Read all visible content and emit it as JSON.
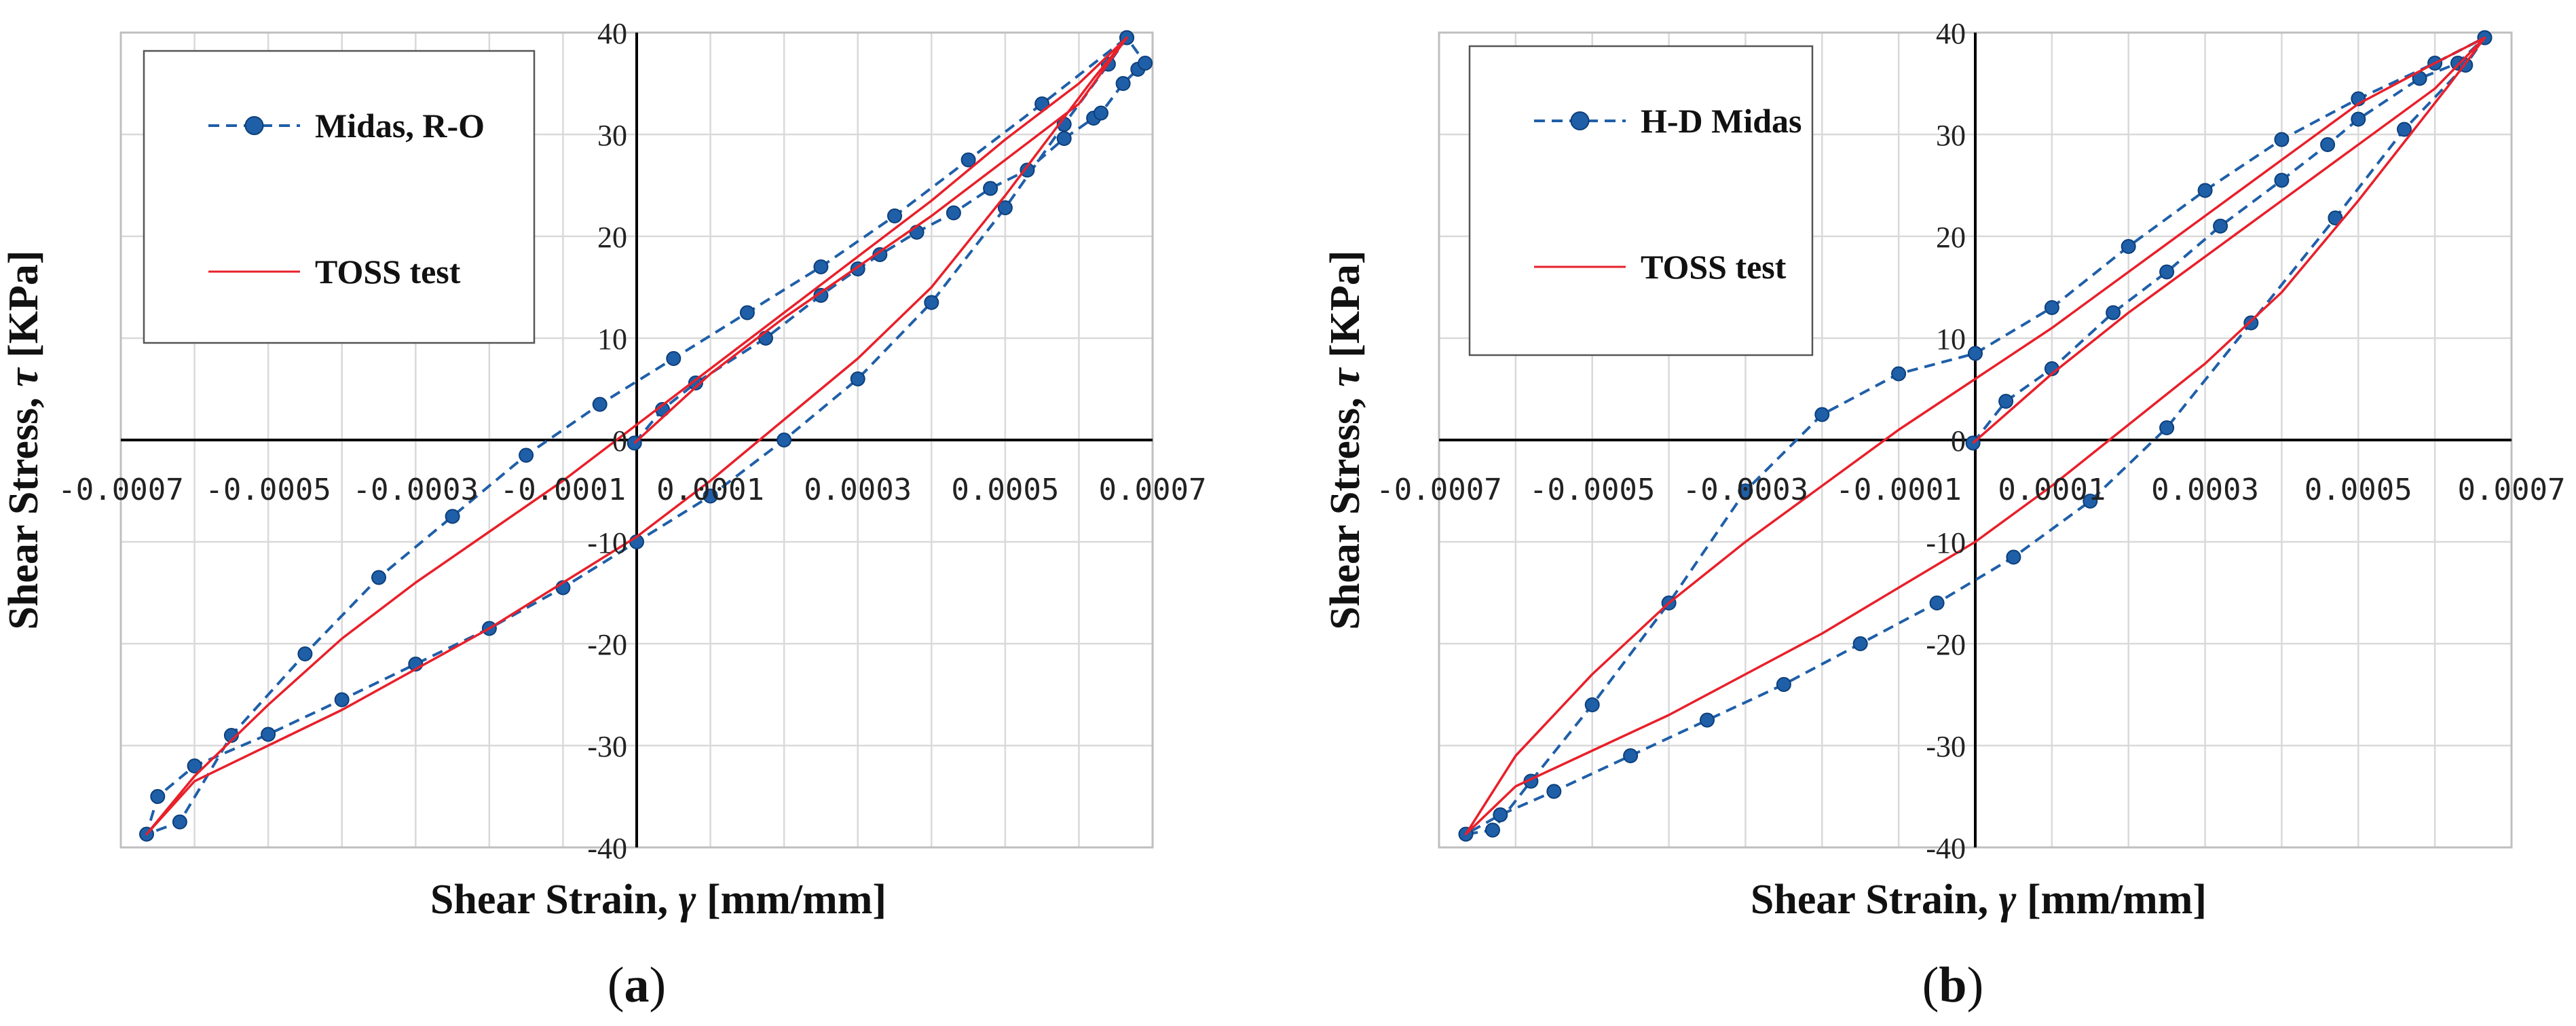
{
  "chart_data": [
    {
      "type": "line",
      "panel_label": "a",
      "title": "",
      "xlabel_prefix": "Shear Strain, ",
      "xlabel_symbol": "γ",
      "xlabel_suffix": "  [mm/mm]",
      "ylabel_prefix": "Shear Stress, ",
      "ylabel_symbol": "τ",
      "ylabel_suffix": " [KPa]",
      "xlim": [
        -0.0007,
        0.0007
      ],
      "ylim": [
        -40,
        40
      ],
      "grid": true,
      "legend_position": "top-left",
      "x_tick_labels": [
        "-0.0007",
        "-0.0005",
        "-0.0003",
        "-0.0001",
        "0.0001",
        "0.0003",
        "0.0005",
        "0.0007"
      ],
      "x_tick_values": [
        -0.0007,
        -0.0005,
        -0.0003,
        -0.0001,
        0.0001,
        0.0003,
        0.0005,
        0.0007
      ],
      "y_tick_labels": [
        "40",
        "30",
        "20",
        "10",
        "0",
        "-10",
        "-20",
        "-30",
        "-40"
      ],
      "y_tick_values": [
        40,
        30,
        20,
        10,
        0,
        -10,
        -20,
        -30,
        -40
      ],
      "series": [
        {
          "name": "Midas, R-O",
          "style": "dashed-markers",
          "color": "#1f5fa8",
          "points": [
            [
              -3e-06,
              -0.3
            ],
            [
              3.5e-05,
              3.0
            ],
            [
              8e-05,
              5.6
            ],
            [
              0.000175,
              10.0
            ],
            [
              0.00025,
              14.2
            ],
            [
              0.0003,
              16.8
            ],
            [
              0.00033,
              18.2
            ],
            [
              0.00038,
              20.4
            ],
            [
              0.00043,
              22.3
            ],
            [
              0.00048,
              24.7
            ],
            [
              0.00053,
              26.5
            ],
            [
              0.00058,
              29.6
            ],
            [
              0.00062,
              31.6
            ],
            [
              0.00063,
              32.1
            ],
            [
              0.00066,
              35.0
            ],
            [
              0.00068,
              36.4
            ],
            [
              0.00069,
              37.0
            ],
            [
              0.000665,
              39.5
            ],
            [
              0.00064,
              36.9
            ],
            [
              0.00058,
              31.0
            ],
            [
              0.0005,
              22.8
            ],
            [
              0.0004,
              13.5
            ],
            [
              0.0003,
              6.0
            ],
            [
              0.0002,
              0.0
            ],
            [
              0.0001,
              -5.5
            ],
            [
              0.0,
              -10.0
            ],
            [
              -0.0001,
              -14.5
            ],
            [
              -0.0002,
              -18.5
            ],
            [
              -0.0003,
              -22.0
            ],
            [
              -0.0004,
              -25.5
            ],
            [
              -0.0005,
              -28.9
            ],
            [
              -0.0006,
              -32.0
            ],
            [
              -0.00065,
              -35.0
            ],
            [
              -0.000665,
              -38.7
            ],
            [
              -0.00062,
              -37.5
            ],
            [
              -0.00055,
              -29.0
            ],
            [
              -0.00045,
              -21.0
            ],
            [
              -0.00035,
              -13.5
            ],
            [
              -0.00025,
              -7.5
            ],
            [
              -0.00015,
              -1.5
            ],
            [
              -5e-05,
              3.5
            ],
            [
              5e-05,
              8.0
            ],
            [
              0.00015,
              12.5
            ],
            [
              0.00025,
              17.0
            ],
            [
              0.00035,
              22.0
            ],
            [
              0.00045,
              27.5
            ],
            [
              0.00055,
              33.0
            ],
            [
              0.000665,
              39.5
            ]
          ]
        },
        {
          "name": "TOSS test",
          "style": "solid",
          "color": "#e8202a",
          "points": [
            [
              -3e-06,
              -0.3
            ],
            [
              0.0001,
              6.5
            ],
            [
              0.0002,
              12.0
            ],
            [
              0.0003,
              17.0
            ],
            [
              0.0004,
              22.0
            ],
            [
              0.0005,
              27.5
            ],
            [
              0.0006,
              33.0
            ],
            [
              0.000665,
              39.5
            ],
            [
              0.00062,
              35.5
            ],
            [
              0.0005,
              24.0
            ],
            [
              0.0004,
              15.0
            ],
            [
              0.0003,
              8.0
            ],
            [
              0.0002,
              2.0
            ],
            [
              0.0001,
              -4.0
            ],
            [
              0.0,
              -9.5
            ],
            [
              -0.0001,
              -14.0
            ],
            [
              -0.0002,
              -18.5
            ],
            [
              -0.0003,
              -22.5
            ],
            [
              -0.0004,
              -26.5
            ],
            [
              -0.0005,
              -30.0
            ],
            [
              -0.0006,
              -33.5
            ],
            [
              -0.000665,
              -38.7
            ],
            [
              -0.0006,
              -33.0
            ],
            [
              -0.0005,
              -26.0
            ],
            [
              -0.0004,
              -19.5
            ],
            [
              -0.0003,
              -14.0
            ],
            [
              -0.0002,
              -9.0
            ],
            [
              -0.0001,
              -4.0
            ],
            [
              0.0,
              1.5
            ],
            [
              0.0001,
              7.0
            ],
            [
              0.0002,
              12.5
            ],
            [
              0.0003,
              18.0
            ],
            [
              0.0004,
              23.5
            ],
            [
              0.0005,
              29.5
            ],
            [
              0.0006,
              35.0
            ],
            [
              0.000665,
              39.5
            ]
          ]
        }
      ]
    },
    {
      "type": "line",
      "panel_label": "b",
      "title": "",
      "xlabel_prefix": "Shear Strain, ",
      "xlabel_symbol": "γ",
      "xlabel_suffix": "  [mm/mm]",
      "ylabel_prefix": "Shear Stress, ",
      "ylabel_symbol": "τ",
      "ylabel_suffix": " [KPa]",
      "xlim": [
        -0.0007,
        0.0007
      ],
      "ylim": [
        -40,
        40
      ],
      "grid": true,
      "legend_position": "top-left",
      "x_tick_labels": [
        "-0.0007",
        "-0.0005",
        "-0.0003",
        "-0.0001",
        "0.0001",
        "0.0003",
        "0.0005",
        "0.0007"
      ],
      "x_tick_values": [
        -0.0007,
        -0.0005,
        -0.0003,
        -0.0001,
        0.0001,
        0.0003,
        0.0005,
        0.0007
      ],
      "y_tick_labels": [
        "40",
        "30",
        "20",
        "10",
        "0",
        "-10",
        "-20",
        "-30",
        "-40"
      ],
      "y_tick_values": [
        40,
        30,
        20,
        10,
        0,
        -10,
        -20,
        -30,
        -40
      ],
      "series": [
        {
          "name": "H-D Midas",
          "style": "dashed-markers",
          "color": "#1f5fa8",
          "points": [
            [
              -3e-06,
              -0.3
            ],
            [
              4e-05,
              3.8
            ],
            [
              0.0001,
              7.0
            ],
            [
              0.00018,
              12.5
            ],
            [
              0.00025,
              16.5
            ],
            [
              0.00032,
              21.0
            ],
            [
              0.0004,
              25.5
            ],
            [
              0.00046,
              29.0
            ],
            [
              0.0005,
              31.5
            ],
            [
              0.00058,
              35.5
            ],
            [
              0.00063,
              37.0
            ],
            [
              0.000665,
              39.5
            ],
            [
              0.00064,
              36.8
            ],
            [
              0.00056,
              30.5
            ],
            [
              0.00047,
              21.8
            ],
            [
              0.00036,
              11.5
            ],
            [
              0.00025,
              1.2
            ],
            [
              0.00015,
              -6.0
            ],
            [
              5e-05,
              -11.5
            ],
            [
              -5e-05,
              -16.0
            ],
            [
              -0.00015,
              -20.0
            ],
            [
              -0.00025,
              -24.0
            ],
            [
              -0.00035,
              -27.5
            ],
            [
              -0.00045,
              -31.0
            ],
            [
              -0.00055,
              -34.5
            ],
            [
              -0.00062,
              -36.8
            ],
            [
              -0.000665,
              -38.7
            ],
            [
              -0.00063,
              -38.3
            ],
            [
              -0.00058,
              -33.5
            ],
            [
              -0.0005,
              -26.0
            ],
            [
              -0.0004,
              -16.0
            ],
            [
              -0.0003,
              -5.0
            ],
            [
              -0.0002,
              2.5
            ],
            [
              -0.0001,
              6.5
            ],
            [
              0.0,
              8.5
            ],
            [
              0.0001,
              13.0
            ],
            [
              0.0002,
              19.0
            ],
            [
              0.0003,
              24.5
            ],
            [
              0.0004,
              29.5
            ],
            [
              0.0005,
              33.5
            ],
            [
              0.0006,
              37.0
            ],
            [
              0.000665,
              39.5
            ]
          ]
        },
        {
          "name": "TOSS test",
          "style": "solid",
          "color": "#e8202a",
          "points": [
            [
              -3e-06,
              -0.3
            ],
            [
              0.0001,
              6.5
            ],
            [
              0.0002,
              12.5
            ],
            [
              0.0003,
              18.0
            ],
            [
              0.0004,
              23.5
            ],
            [
              0.0005,
              29.0
            ],
            [
              0.0006,
              34.5
            ],
            [
              0.000665,
              39.5
            ],
            [
              0.00062,
              35.0
            ],
            [
              0.0005,
              23.5
            ],
            [
              0.0004,
              14.5
            ],
            [
              0.0003,
              7.5
            ],
            [
              0.0002,
              1.5
            ],
            [
              0.0001,
              -4.5
            ],
            [
              0.0,
              -10.0
            ],
            [
              -0.0001,
              -14.5
            ],
            [
              -0.0002,
              -19.0
            ],
            [
              -0.0003,
              -23.0
            ],
            [
              -0.0004,
              -27.0
            ],
            [
              -0.0005,
              -30.5
            ],
            [
              -0.0006,
              -34.0
            ],
            [
              -0.000665,
              -38.7
            ],
            [
              -0.0006,
              -31.0
            ],
            [
              -0.0005,
              -23.0
            ],
            [
              -0.0004,
              -16.0
            ],
            [
              -0.0003,
              -10.0
            ],
            [
              -0.0002,
              -4.5
            ],
            [
              -0.0001,
              1.0
            ],
            [
              0.0,
              6.0
            ],
            [
              0.0001,
              11.0
            ],
            [
              0.0002,
              16.5
            ],
            [
              0.0003,
              22.0
            ],
            [
              0.0004,
              27.5
            ],
            [
              0.0005,
              33.0
            ],
            [
              0.0006,
              37.0
            ],
            [
              0.000665,
              39.5
            ]
          ]
        }
      ]
    }
  ]
}
